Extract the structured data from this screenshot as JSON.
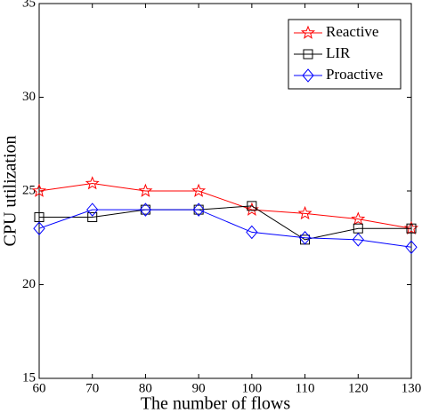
{
  "chart_data": {
    "type": "line",
    "x_label": "The number of flows",
    "y_label": "CPU utilization",
    "x": [
      60,
      70,
      80,
      90,
      100,
      110,
      120,
      130
    ],
    "series": [
      {
        "name": "Reactive",
        "color": "#ff0000",
        "marker": "star",
        "values": [
          25.0,
          25.4,
          25.0,
          25.0,
          24.0,
          23.8,
          23.5,
          23.0
        ]
      },
      {
        "name": "LIR",
        "color": "#000000",
        "marker": "square",
        "values": [
          23.6,
          23.6,
          24.0,
          24.0,
          24.2,
          22.4,
          23.0,
          23.0
        ]
      },
      {
        "name": "Proactive",
        "color": "#0000ff",
        "marker": "diamond",
        "values": [
          23.0,
          24.0,
          24.0,
          24.0,
          22.8,
          22.5,
          22.4,
          22.0
        ]
      }
    ],
    "xlim": [
      60,
      130
    ],
    "xticks": [
      60,
      70,
      80,
      90,
      100,
      110,
      120,
      130
    ],
    "ylim": [
      15,
      35
    ],
    "yticks": [
      15,
      20,
      25,
      30,
      35
    ],
    "legend": "upper right",
    "grid": false
  }
}
